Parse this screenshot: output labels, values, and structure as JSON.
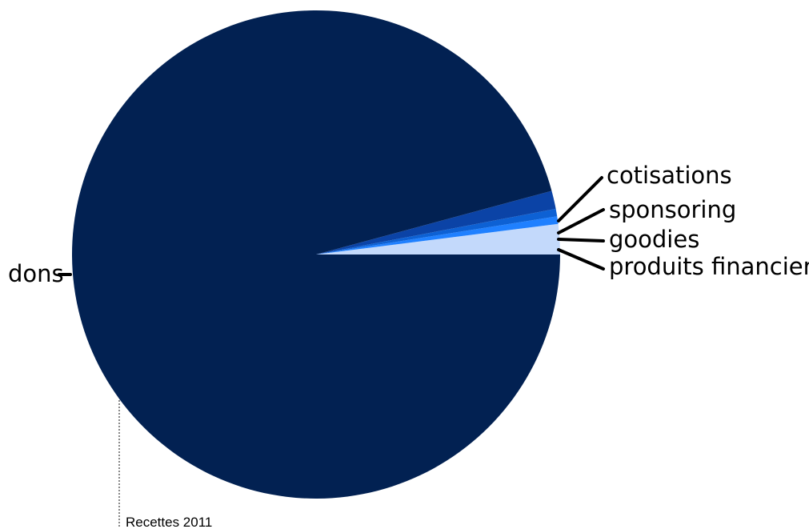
{
  "chart_data": {
    "type": "pie",
    "slices": [
      {
        "label": "dons",
        "percent": 95.8,
        "color": "#022152"
      },
      {
        "label": "cotisations",
        "percent": 1.2,
        "color": "#0b43a6"
      },
      {
        "label": "sponsoring",
        "percent": 0.5,
        "color": "#0d61d4"
      },
      {
        "label": "goodies",
        "percent": 0.5,
        "color": "#1f80ff"
      },
      {
        "label": "produits financiers",
        "percent": 2.0,
        "color": "#c3d9fb"
      }
    ],
    "annotation": "Recettes 2011"
  }
}
